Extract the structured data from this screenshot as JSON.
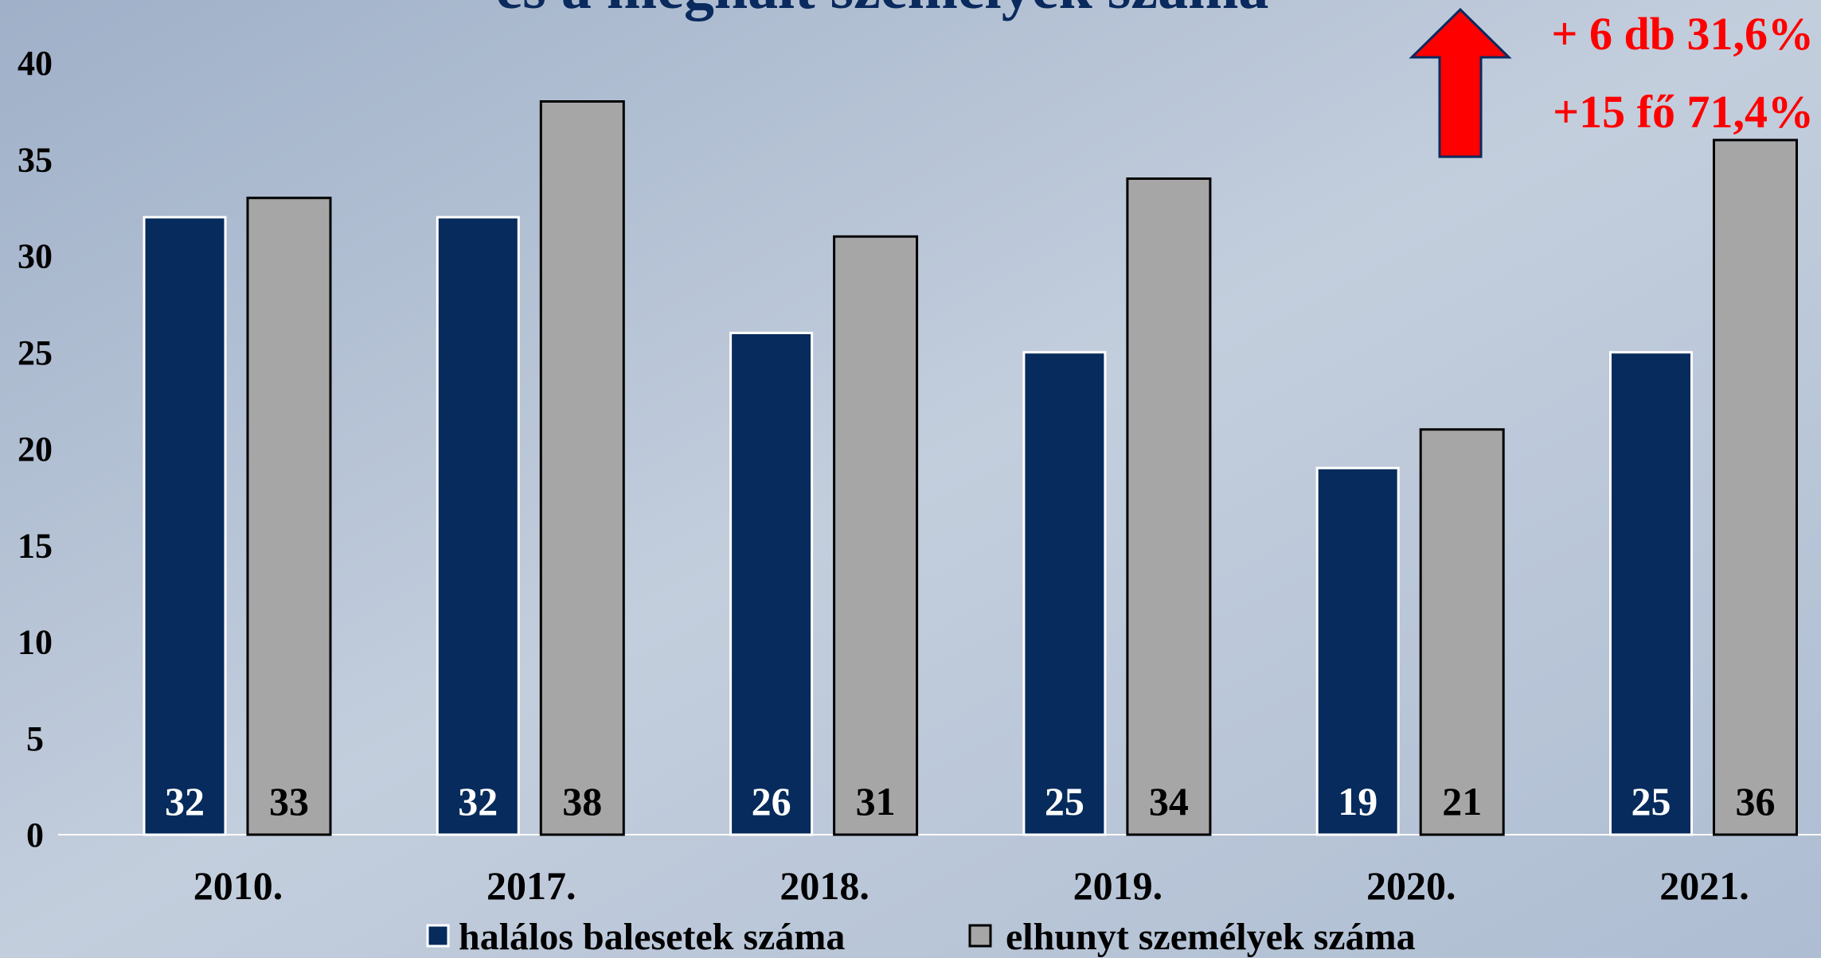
{
  "chart_data": {
    "type": "bar",
    "title": "és a meghalt személyek száma",
    "annotations": [
      "+ 6 db 31,6%",
      "+15 fő 71,4%"
    ],
    "categories": [
      "2010.",
      "2017.",
      "2018.",
      "2019.",
      "2020.",
      "2021."
    ],
    "series": [
      {
        "name": "halálos balesetek száma",
        "color": "#062b5c",
        "values": [
          32,
          32,
          26,
          25,
          19,
          25
        ]
      },
      {
        "name": "elhunyt személyek száma",
        "color": "#a6a6a6",
        "values": [
          33,
          38,
          31,
          34,
          21,
          36
        ]
      }
    ],
    "ylim": [
      0,
      40
    ],
    "yticks": [
      0,
      5,
      10,
      15,
      20,
      25,
      30,
      35,
      40
    ],
    "grid": false
  }
}
